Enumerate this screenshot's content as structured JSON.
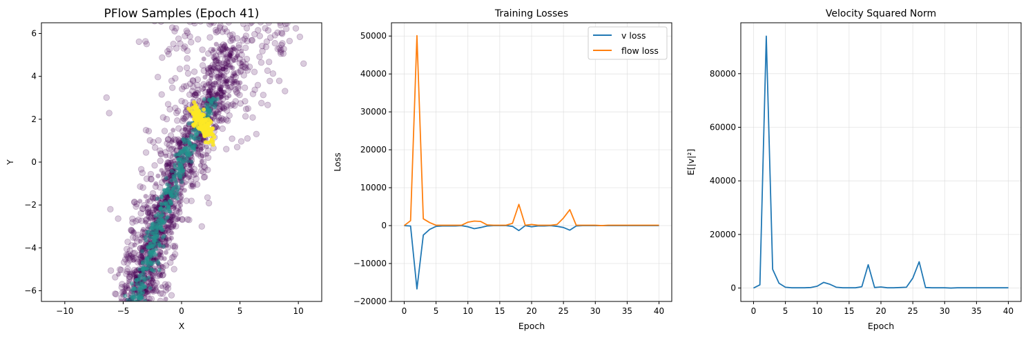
{
  "figure": {
    "colors": {
      "scatter_low": "#440154",
      "scatter_mid": "#21918c",
      "scatter_high": "#fde725",
      "v_loss": "#1f77b4",
      "flow_loss": "#ff7f0e",
      "grid": "#d9d9d9"
    }
  },
  "chart_data": [
    {
      "type": "scatter",
      "title": "PFlow Samples (Epoch 41)",
      "xlabel": "X",
      "ylabel": "Y",
      "xlim": [
        -12,
        12
      ],
      "ylim": [
        -6.5,
        6.5
      ],
      "xticks": [
        -10,
        -5,
        0,
        5,
        10
      ],
      "xtick_labels": [
        "−10",
        "−5",
        "0",
        "5",
        "10"
      ],
      "yticks": [
        -6,
        -4,
        -2,
        0,
        2,
        4,
        6
      ],
      "ytick_labels": [
        "−6",
        "−4",
        "−2",
        "0",
        "2",
        "4",
        "6"
      ],
      "grid": false,
      "colormap": "viridis",
      "point_alpha": 0.2,
      "distribution": {
        "description_free_params": true,
        "trend_x": [
          -4,
          -3,
          -2,
          -1,
          0,
          1,
          2,
          3
        ],
        "trend_y": [
          -6.5,
          -5,
          -3,
          -1.5,
          0,
          1.2,
          2,
          3.5
        ],
        "dense_core_x": [
          1.0,
          2.6
        ],
        "dense_core_y": [
          1.2,
          2.4
        ]
      }
    },
    {
      "type": "line",
      "title": "Training Losses",
      "xlabel": "Epoch",
      "ylabel": "Loss",
      "xlim": [
        -2,
        42
      ],
      "ylim": [
        -20000,
        53500
      ],
      "xticks": [
        0,
        5,
        10,
        15,
        20,
        25,
        30,
        35,
        40
      ],
      "xtick_labels": [
        "0",
        "5",
        "10",
        "15",
        "20",
        "25",
        "30",
        "35",
        "40"
      ],
      "yticks": [
        -20000,
        -10000,
        0,
        10000,
        20000,
        30000,
        40000,
        50000
      ],
      "ytick_labels": [
        "−20000",
        "−10000",
        "0",
        "10000",
        "20000",
        "30000",
        "40000",
        "50000"
      ],
      "grid": true,
      "legend_position": "top-right",
      "x": [
        0,
        1,
        2,
        3,
        4,
        5,
        6,
        7,
        8,
        9,
        10,
        11,
        12,
        13,
        14,
        15,
        16,
        17,
        18,
        19,
        20,
        21,
        22,
        23,
        24,
        25,
        26,
        27,
        28,
        29,
        30,
        31,
        32,
        33,
        34,
        35,
        36,
        37,
        38,
        39,
        40
      ],
      "series": [
        {
          "name": "v loss",
          "values": [
            0,
            -100,
            -16700,
            -2500,
            -1000,
            -200,
            -100,
            -100,
            -100,
            0,
            -300,
            -800,
            -500,
            -100,
            0,
            0,
            0,
            -200,
            -1300,
            0,
            -300,
            -100,
            -100,
            0,
            -200,
            -500,
            -1200,
            -100,
            0,
            0,
            0,
            0,
            0,
            0,
            0,
            0,
            0,
            0,
            0,
            0,
            0
          ]
        },
        {
          "name": "flow loss",
          "values": [
            0,
            1300,
            50100,
            1800,
            800,
            100,
            100,
            100,
            100,
            100,
            900,
            1200,
            1100,
            200,
            100,
            100,
            100,
            600,
            5600,
            100,
            300,
            100,
            100,
            100,
            300,
            2000,
            4200,
            100,
            100,
            100,
            100,
            0,
            100,
            100,
            100,
            100,
            100,
            100,
            100,
            100,
            100
          ]
        }
      ]
    },
    {
      "type": "line",
      "title": "Velocity Squared Norm",
      "xlabel": "Epoch",
      "ylabel": "E[|v|²]",
      "xlim": [
        -2,
        42
      ],
      "ylim": [
        -5000,
        99000
      ],
      "xticks": [
        0,
        5,
        10,
        15,
        20,
        25,
        30,
        35,
        40
      ],
      "xtick_labels": [
        "0",
        "5",
        "10",
        "15",
        "20",
        "25",
        "30",
        "35",
        "40"
      ],
      "yticks": [
        0,
        20000,
        40000,
        60000,
        80000
      ],
      "ytick_labels": [
        "0",
        "20000",
        "40000",
        "60000",
        "80000"
      ],
      "grid": true,
      "x": [
        0,
        1,
        2,
        3,
        4,
        5,
        6,
        7,
        8,
        9,
        10,
        11,
        12,
        13,
        14,
        15,
        16,
        17,
        18,
        19,
        20,
        21,
        22,
        23,
        24,
        25,
        26,
        27,
        28,
        29,
        30,
        31,
        32,
        33,
        34,
        35,
        36,
        37,
        38,
        39,
        40
      ],
      "series": [
        {
          "values": [
            0,
            1200,
            94000,
            7000,
            1800,
            300,
            100,
            100,
            100,
            200,
            700,
            2100,
            1400,
            300,
            100,
            100,
            100,
            500,
            8700,
            200,
            400,
            100,
            100,
            200,
            300,
            3700,
            9800,
            200,
            100,
            100,
            100,
            0,
            100,
            100,
            100,
            100,
            100,
            100,
            100,
            100,
            100
          ]
        }
      ]
    }
  ]
}
